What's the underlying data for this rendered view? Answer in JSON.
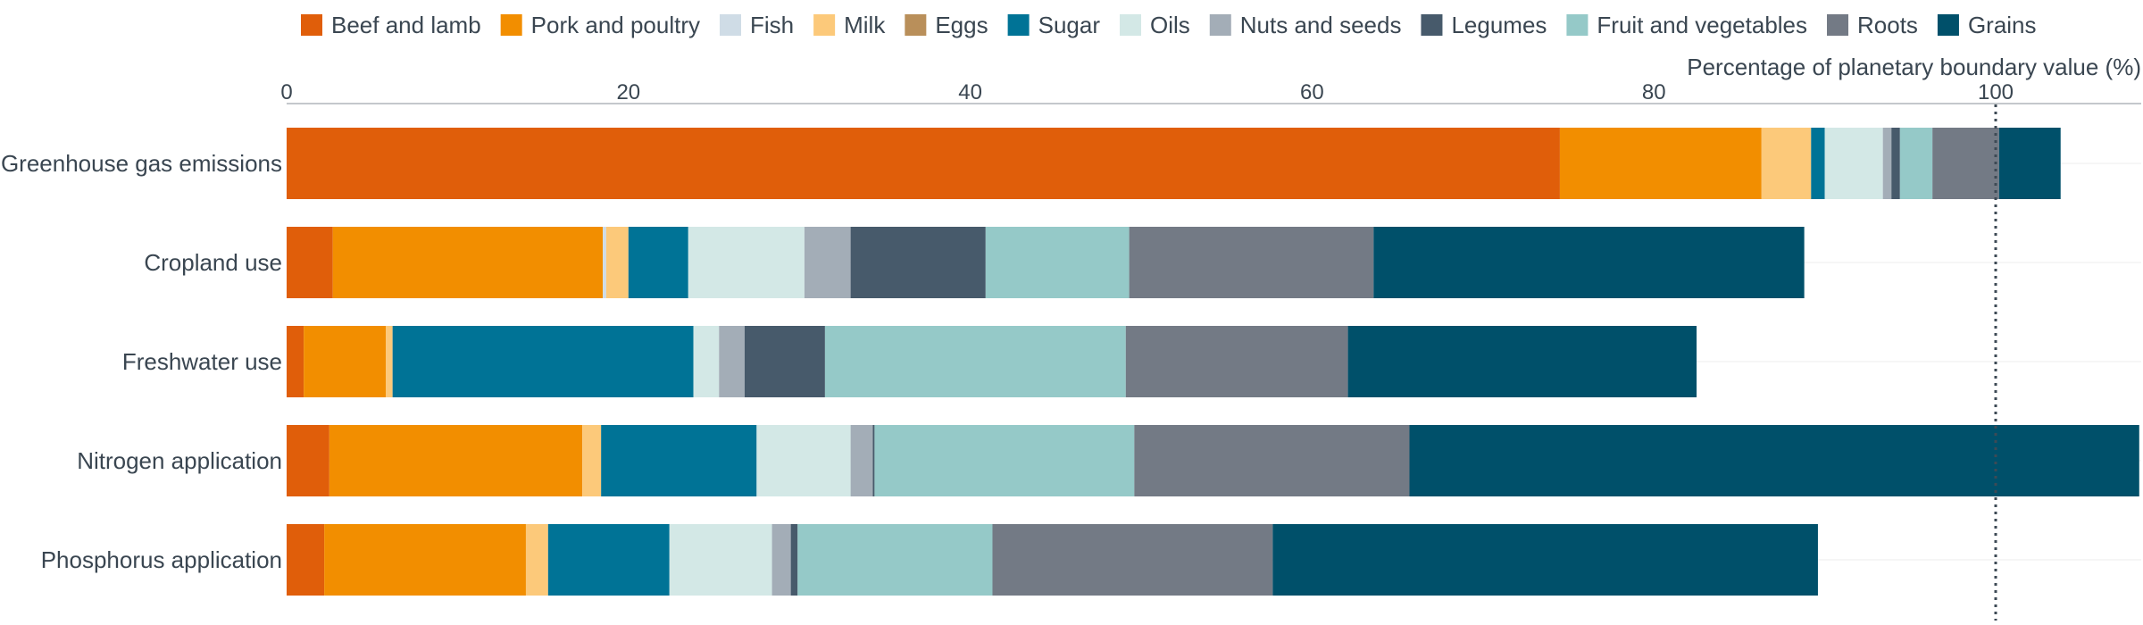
{
  "chart_data": {
    "type": "bar",
    "orientation": "horizontal",
    "stacked": true,
    "axis_title": "Percentage of planetary boundary value (%)",
    "xlim": [
      0,
      108
    ],
    "x_ticks": [
      0,
      20,
      40,
      60,
      80,
      100
    ],
    "reference_line": 100,
    "legend_position": "top",
    "categories": [
      "Greenhouse gas emissions",
      "Cropland use",
      "Freshwater use",
      "Nitrogen application",
      "Phosphorus application"
    ],
    "series": [
      {
        "name": "Beef and lamb",
        "color": "#e05e0a",
        "values": [
          74.5,
          2.7,
          1.0,
          2.5,
          2.2
        ]
      },
      {
        "name": "Pork and poultry",
        "color": "#f28e00",
        "values": [
          11.8,
          15.8,
          4.8,
          14.8,
          11.8
        ]
      },
      {
        "name": "Fish",
        "color": "#cfdce6",
        "values": [
          0.0,
          0.2,
          0.0,
          0.0,
          0.0
        ]
      },
      {
        "name": "Milk",
        "color": "#fcc97a",
        "values": [
          2.9,
          1.3,
          0.4,
          1.1,
          1.3
        ]
      },
      {
        "name": "Eggs",
        "color": "#b98f5a",
        "values": [
          0.0,
          0.0,
          0.0,
          0.0,
          0.0
        ]
      },
      {
        "name": "Sugar",
        "color": "#007396",
        "values": [
          0.8,
          3.5,
          17.6,
          9.1,
          7.1
        ]
      },
      {
        "name": "Oils",
        "color": "#d3e8e6",
        "values": [
          3.4,
          6.8,
          1.5,
          5.5,
          6.0
        ]
      },
      {
        "name": "Nuts and seeds",
        "color": "#a3adb7",
        "values": [
          0.5,
          2.7,
          1.5,
          1.3,
          1.1
        ]
      },
      {
        "name": "Legumes",
        "color": "#475a6b",
        "values": [
          0.5,
          7.9,
          4.7,
          0.1,
          0.4
        ]
      },
      {
        "name": "Fruit and vegetables",
        "color": "#95c9c8",
        "values": [
          1.9,
          8.4,
          17.6,
          15.2,
          11.4
        ]
      },
      {
        "name": "Roots",
        "color": "#737a85",
        "values": [
          3.9,
          14.3,
          13.0,
          16.1,
          16.4
        ]
      },
      {
        "name": "Grains",
        "color": "#00506a",
        "values": [
          3.6,
          25.2,
          20.4,
          42.7,
          31.9
        ]
      }
    ]
  }
}
